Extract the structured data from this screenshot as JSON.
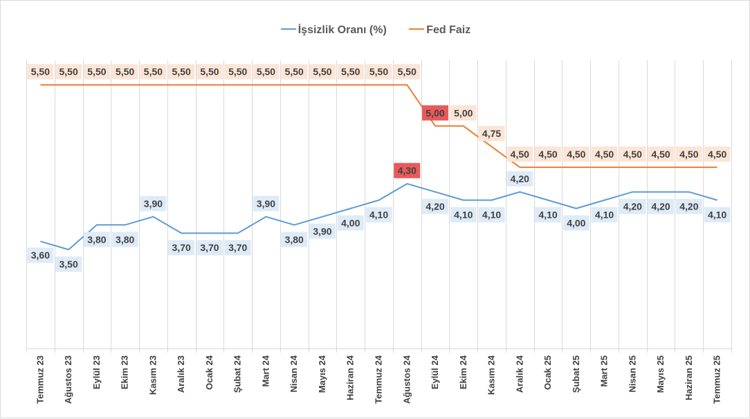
{
  "chart_data": {
    "type": "line",
    "title": "",
    "categories": [
      "Temmuz 23",
      "Ağustos 23",
      "Eylül 23",
      "Ekim 23",
      "Kasım 23",
      "Aralık 23",
      "Ocak 24",
      "Şubat 24",
      "Mart 24",
      "Nisan 24",
      "Mayıs 24",
      "Haziran 24",
      "Temmuz 24",
      "Ağustos 24",
      "Eylül 24",
      "Ekim 24",
      "Kasım 24",
      "Aralık 24",
      "Ocak 25",
      "Şubat 25",
      "Mart 25",
      "Nisan 25",
      "Mayıs 25",
      "Haziran 25",
      "Temmuz 25"
    ],
    "series": [
      {
        "name": "İşsizlik Oranı (%)",
        "color": "#5b9bd5",
        "label_bg": "#deebf7",
        "values": [
          3.6,
          3.5,
          3.8,
          3.8,
          3.9,
          3.7,
          3.7,
          3.7,
          3.9,
          3.8,
          3.9,
          4.0,
          4.1,
          4.3,
          4.2,
          4.1,
          4.1,
          4.2,
          4.1,
          4.0,
          4.1,
          4.2,
          4.2,
          4.2,
          4.1
        ],
        "labels": [
          "3,60",
          "3,50",
          "3,80",
          "3,80",
          "3,90",
          "3,70",
          "3,70",
          "3,70",
          "3,90",
          "3,80",
          "3,90",
          "4,00",
          "4,10",
          "4,30",
          "4,20",
          "4,10",
          "4,10",
          "4,20",
          "4,10",
          "4,00",
          "4,10",
          "4,20",
          "4,20",
          "4,20",
          "4,10"
        ],
        "highlight_index": 13
      },
      {
        "name": "Fed Faiz",
        "color": "#ed7d31",
        "label_bg": "#fbe5d6",
        "values": [
          5.5,
          5.5,
          5.5,
          5.5,
          5.5,
          5.5,
          5.5,
          5.5,
          5.5,
          5.5,
          5.5,
          5.5,
          5.5,
          5.5,
          5.0,
          5.0,
          4.75,
          4.5,
          4.5,
          4.5,
          4.5,
          4.5,
          4.5,
          4.5,
          4.5
        ],
        "labels": [
          "5,50",
          "5,50",
          "5,50",
          "5,50",
          "5,50",
          "5,50",
          "5,50",
          "5,50",
          "5,50",
          "5,50",
          "5,50",
          "5,50",
          "5,50",
          "5,50",
          "5,00",
          "5,00",
          "4,75",
          "4,50",
          "4,50",
          "4,50",
          "4,50",
          "4,50",
          "4,50",
          "4,50",
          "4,50"
        ],
        "highlight_index": 14
      }
    ],
    "highlight_color": "#e85a5a",
    "legend_position": "top",
    "grid": "vertical",
    "ylim": [
      2.3,
      5.8
    ]
  }
}
